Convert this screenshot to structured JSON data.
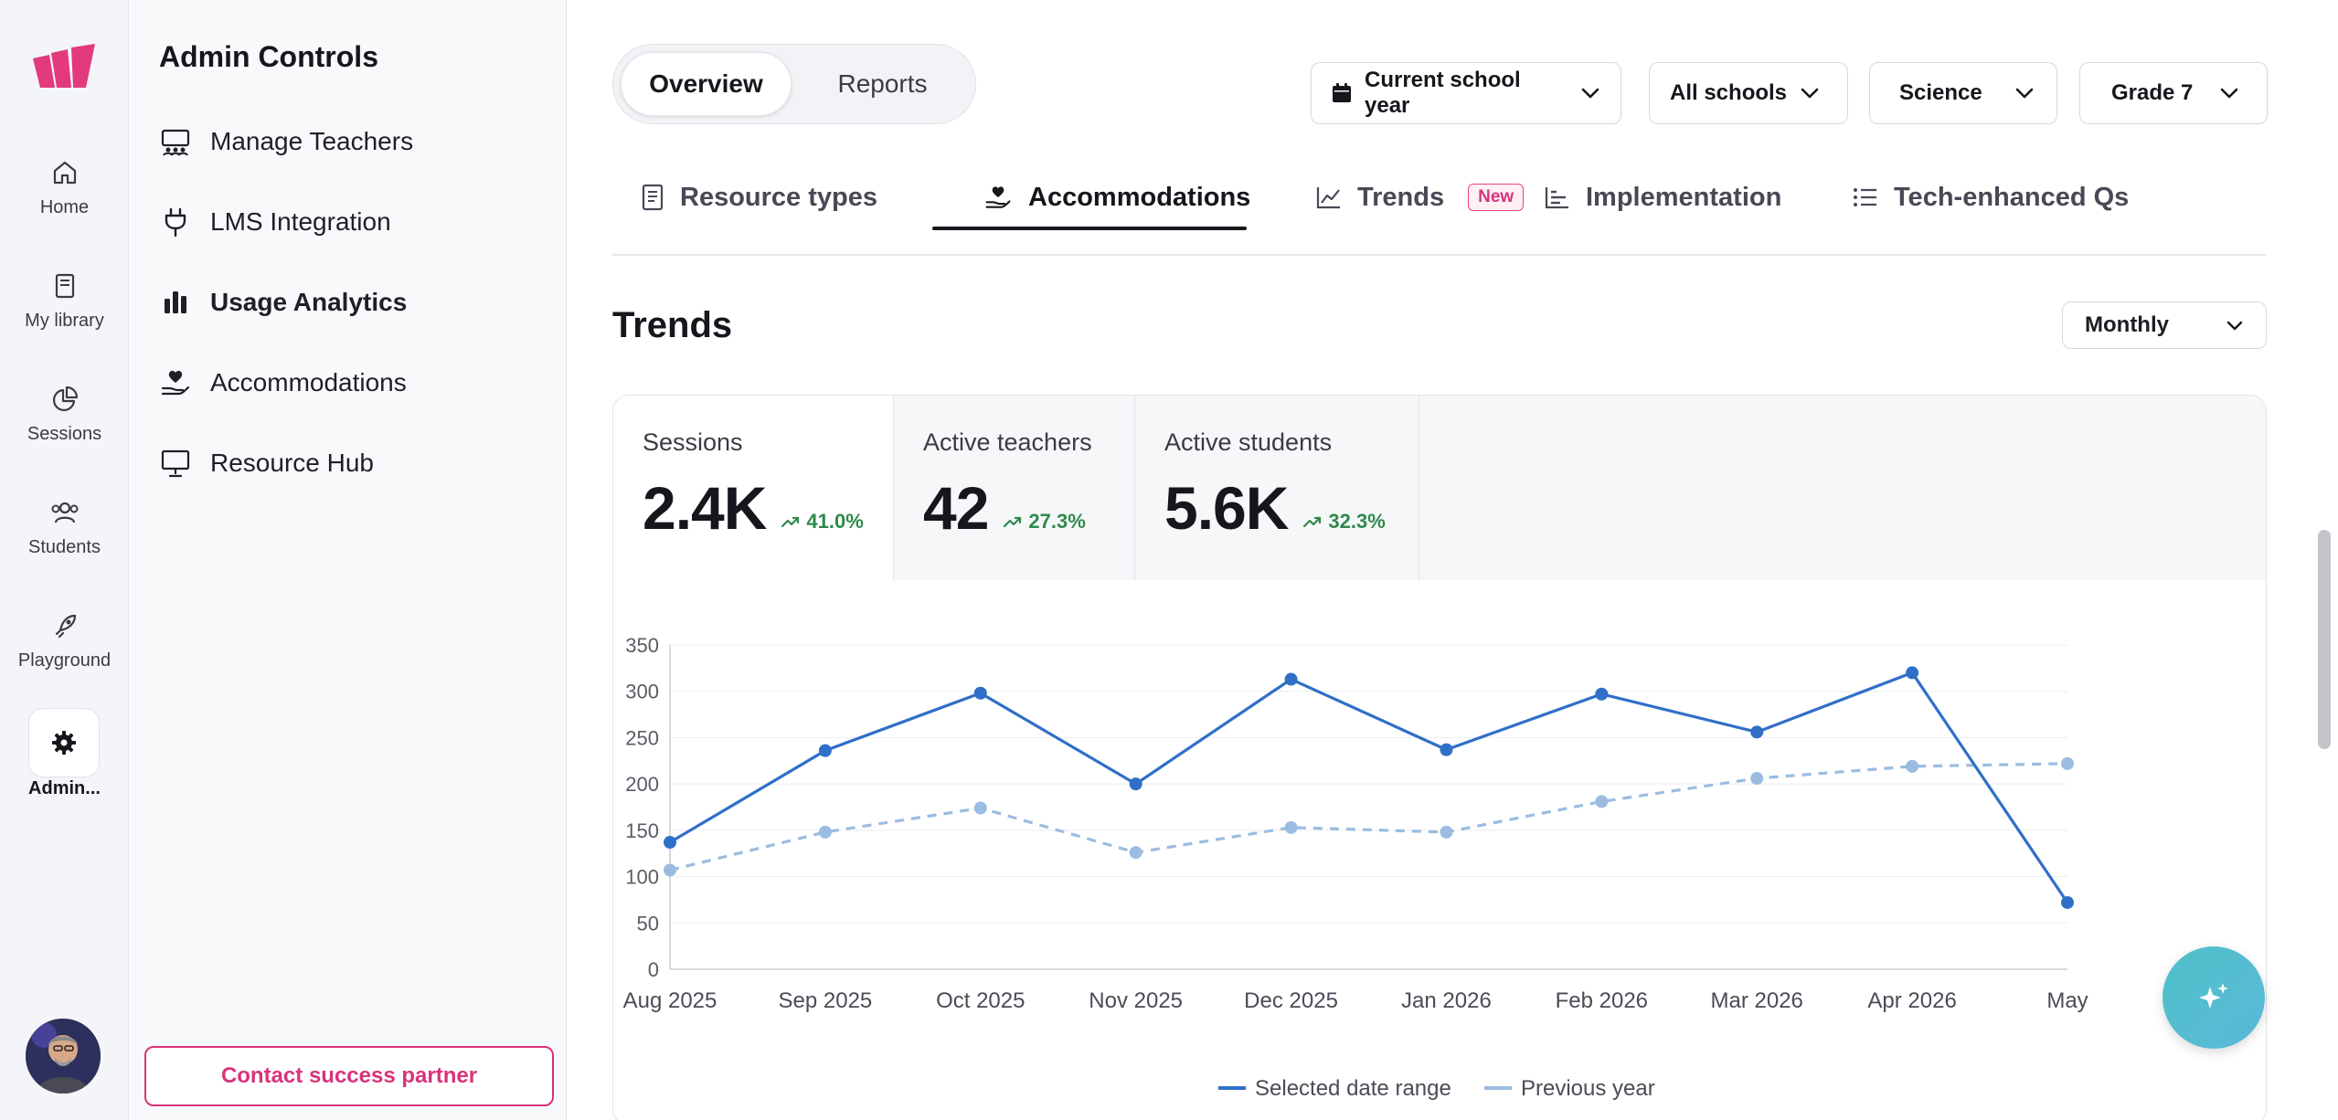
{
  "rail": {
    "items": [
      {
        "label": "Home",
        "icon": "home-icon"
      },
      {
        "label": "My library",
        "icon": "book-icon"
      },
      {
        "label": "Sessions",
        "icon": "pie-chart-icon"
      },
      {
        "label": "Students",
        "icon": "users-icon"
      },
      {
        "label": "Playground",
        "icon": "rocket-icon"
      }
    ],
    "admin_label": "Admin..."
  },
  "panel": {
    "title": "Admin Controls",
    "items": [
      {
        "label": "Manage Teachers",
        "icon": "teachers-icon",
        "active": false
      },
      {
        "label": "LMS Integration",
        "icon": "plug-icon",
        "active": false
      },
      {
        "label": "Usage Analytics",
        "icon": "bar-chart-icon",
        "active": true
      },
      {
        "label": "Accommodations",
        "icon": "hand-heart-icon",
        "active": false
      },
      {
        "label": "Resource Hub",
        "icon": "presentation-icon",
        "active": false
      }
    ],
    "contact_label": "Contact success partner"
  },
  "header": {
    "segments": [
      "Overview",
      "Reports"
    ],
    "active_segment": "Overview",
    "filters": [
      "Current school year",
      "All schools",
      "Science",
      "Grade 7"
    ]
  },
  "tabs": {
    "items": [
      {
        "label": "Resource types",
        "icon": "document-icon"
      },
      {
        "label": "Accommodations",
        "icon": "hand-heart-icon"
      },
      {
        "label": "Trends",
        "icon": "line-chart-icon",
        "badge": "New"
      },
      {
        "label": "Implementation",
        "icon": "bar-chart-icon"
      },
      {
        "label": "Tech-enhanced Qs",
        "icon": "list-icon"
      }
    ],
    "active": "Accommodations"
  },
  "section": {
    "title": "Trends",
    "interval": "Monthly"
  },
  "kpis": [
    {
      "label": "Sessions",
      "value": "2.4K",
      "delta": "41.0%"
    },
    {
      "label": "Active teachers",
      "value": "42",
      "delta": "27.3%"
    },
    {
      "label": "Active students",
      "value": "5.6K",
      "delta": "32.3%"
    }
  ],
  "colors": {
    "accent": "#d9337a",
    "selected_series": "#2f6fc8",
    "previous_series": "#9bbce0",
    "positive": "#2e8a4b"
  },
  "chart_data": {
    "type": "line",
    "categories": [
      "Aug 2025",
      "Sep 2025",
      "Oct 2025",
      "Nov 2025",
      "Dec 2025",
      "Jan 2026",
      "Feb 2026",
      "Mar 2026",
      "Apr 2026",
      "May"
    ],
    "series": [
      {
        "name": "Selected date range",
        "values": [
          137,
          236,
          298,
          200,
          313,
          237,
          297,
          256,
          320,
          72
        ]
      },
      {
        "name": "Previous year",
        "values": [
          107,
          148,
          174,
          126,
          153,
          148,
          181,
          206,
          219,
          222
        ]
      }
    ],
    "ylim": [
      0,
      350
    ],
    "yticks": [
      0,
      50,
      100,
      150,
      200,
      250,
      300,
      350
    ],
    "grid": true,
    "legend": "bottom"
  }
}
